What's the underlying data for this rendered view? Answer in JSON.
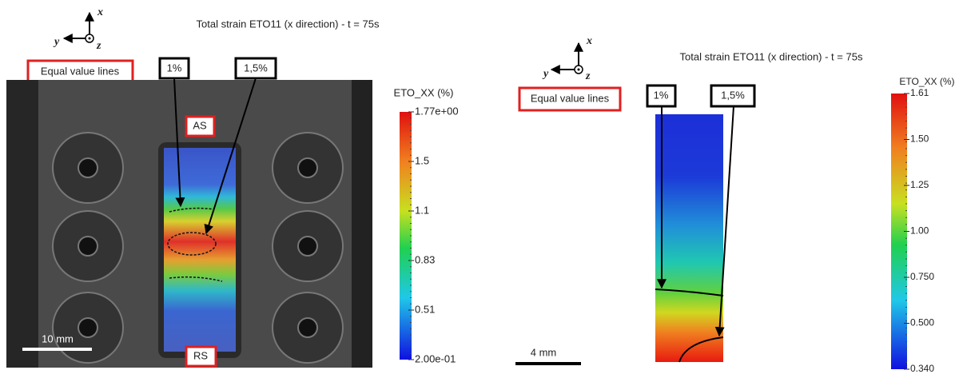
{
  "left_panel": {
    "title": "Total strain ETO11 (x direction) - t = 75s",
    "axes": {
      "x": "x",
      "y": "y",
      "z": "z"
    },
    "legend_box": "Equal value lines",
    "callouts": [
      "1%",
      "1,5%"
    ],
    "markers": {
      "top": "AS",
      "bottom": "RS"
    },
    "scale_bar": "10 mm",
    "colorbar": {
      "title": "ETO_XX (%)",
      "ticks": [
        "1.77e+00",
        "1.5",
        "1.1",
        "0.83",
        "0.51",
        "2.00e-01"
      ]
    }
  },
  "right_panel": {
    "title": "Total strain ETO11 (x direction) - t = 75s",
    "axes": {
      "x": "x",
      "y": "y",
      "z": "z"
    },
    "legend_box": "Equal value lines",
    "callouts": [
      "1%",
      "1,5%"
    ],
    "scale_bar": "4 mm",
    "colorbar": {
      "title": "ETO_XX (%)",
      "ticks": [
        "1.61",
        "1.50",
        "1.25",
        "1.00",
        "0.750",
        "0.500",
        "0.340"
      ]
    }
  }
}
